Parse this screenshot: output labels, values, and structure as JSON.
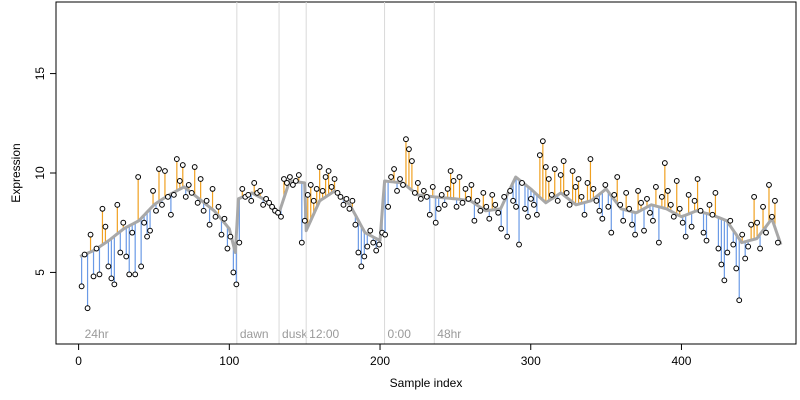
{
  "chart_data": {
    "type": "scatter",
    "title": "",
    "xlabel": "Sample index",
    "ylabel": "Expression",
    "xlim": [
      -15,
      476
    ],
    "ylim": [
      1.4,
      18.6
    ],
    "x_ticks": [
      0,
      100,
      200,
      300,
      400
    ],
    "y_ticks": [
      5,
      10,
      15
    ],
    "grid": false,
    "legend": "none",
    "colors": {
      "above_fit": "#f0a020",
      "below_fit": "#6a9ae6",
      "fit_line": "#a8a8a8",
      "points_stroke": "#000000",
      "region_lines": "#d9d9d9",
      "region_text": "#9a9a9a"
    },
    "regions": [
      {
        "x": 2,
        "label": "24hr"
      },
      {
        "x": 105,
        "label": "dawn"
      },
      {
        "x": 133,
        "label": "dusk"
      },
      {
        "x": 151,
        "label": "12:00"
      },
      {
        "x": 203,
        "label": "0:00"
      },
      {
        "x": 236,
        "label": "48hr"
      }
    ],
    "fit_anchors": {
      "x": [
        1,
        10,
        20,
        30,
        40,
        50,
        60,
        70,
        80,
        90,
        100,
        104,
        106,
        115,
        125,
        133,
        140,
        150,
        151,
        160,
        170,
        180,
        190,
        200,
        203,
        215,
        225,
        236,
        250,
        260,
        270,
        280,
        290,
        300,
        310,
        320,
        330,
        340,
        350,
        360,
        370,
        380,
        390,
        400,
        410,
        420,
        430,
        440,
        450,
        460,
        466
      ],
      "y": [
        5.8,
        6.1,
        6.6,
        7.2,
        7.6,
        8.4,
        8.9,
        9.3,
        8.7,
        8.1,
        7.2,
        6.0,
        8.7,
        9.0,
        8.6,
        8.0,
        9.6,
        9.5,
        7.1,
        8.6,
        9.1,
        8.4,
        7.0,
        6.6,
        9.6,
        9.5,
        8.9,
        8.8,
        8.7,
        8.6,
        8.1,
        8.2,
        9.8,
        9.2,
        8.5,
        9.0,
        8.4,
        8.6,
        9.2,
        8.2,
        8.0,
        8.4,
        8.2,
        7.8,
        8.1,
        7.9,
        7.6,
        6.5,
        6.7,
        7.7,
        6.4
      ]
    },
    "series": [
      {
        "values": [
          4.3,
          5.9,
          3.2,
          6.9,
          4.8,
          6.2,
          4.9,
          8.2,
          7.3,
          5.3,
          4.7,
          4.4,
          8.4,
          6.0,
          7.5,
          5.8,
          4.9,
          7.0,
          4.9,
          9.8,
          5.3,
          7.5,
          6.8,
          7.1,
          9.1,
          8.1,
          10.2,
          8.4,
          10.1,
          8.8,
          7.9,
          8.9,
          10.7,
          9.6,
          10.4,
          8.8,
          9.4,
          9.0,
          10.3,
          8.5,
          9.7,
          8.1,
          8.6,
          7.4,
          9.2,
          7.8,
          8.3,
          6.9,
          7.7,
          6.2,
          6.8,
          5.0,
          4.4,
          6.5,
          9.2,
          8.8,
          8.9,
          8.6,
          9.5,
          9.0,
          9.1,
          8.4,
          8.7,
          8.5,
          8.3,
          8.1,
          8.0,
          7.8,
          9.7,
          9.5,
          9.8,
          9.4,
          9.6,
          9.9,
          6.5,
          7.6,
          8.9,
          9.4,
          8.6,
          9.2,
          10.3,
          9.1,
          9.8,
          10.1,
          9.3,
          9.7,
          9.0,
          8.8,
          8.4,
          8.7,
          8.2,
          8.6,
          7.4,
          6.0,
          5.3,
          5.8,
          6.3,
          7.1,
          6.5,
          6.1,
          6.4,
          7.0,
          6.9,
          8.3,
          9.8,
          10.2,
          9.1,
          9.7,
          9.4,
          11.7,
          11.2,
          10.6,
          9.0,
          9.5,
          8.7,
          9.1,
          8.8,
          7.9,
          9.3,
          7.5,
          8.2,
          8.9,
          8.4,
          9.2,
          10.1,
          9.6,
          8.3,
          9.8,
          8.5,
          9.2,
          8.7,
          9.4,
          7.6,
          8.6,
          8.1,
          9.0,
          8.3,
          7.7,
          8.9,
          8.4,
          8.0,
          7.2,
          8.8,
          6.8,
          9.1,
          8.6,
          8.3,
          6.4,
          9.5,
          8.2,
          7.8,
          8.7,
          8.4,
          7.9,
          10.9,
          11.6,
          10.3,
          9.7,
          8.9,
          10.2,
          8.6,
          9.9,
          10.6,
          9.0,
          8.4,
          10.1,
          9.3,
          9.7,
          8.8,
          7.9,
          9.5,
          10.7,
          9.2,
          8.6,
          8.1,
          7.7,
          9.4,
          8.3,
          7.0,
          8.9,
          9.8,
          8.4,
          7.6,
          9.0,
          8.2,
          7.4,
          6.9,
          9.1,
          8.5,
          7.1,
          8.7,
          8.0,
          7.6,
          9.3,
          6.5,
          8.8,
          10.5,
          9.1,
          8.4,
          7.8,
          9.6,
          8.2,
          7.5,
          6.8,
          8.9,
          7.3,
          8.6,
          9.7,
          8.1,
          7.0,
          6.6,
          8.4,
          7.9,
          9.0,
          6.2,
          5.4,
          4.6,
          6.0,
          7.6,
          6.4,
          5.2,
          3.6,
          6.9,
          5.7,
          6.3,
          7.4,
          8.8,
          7.5,
          6.2,
          8.3,
          7.0,
          9.4,
          7.8,
          8.6,
          6.5
        ]
      }
    ]
  }
}
